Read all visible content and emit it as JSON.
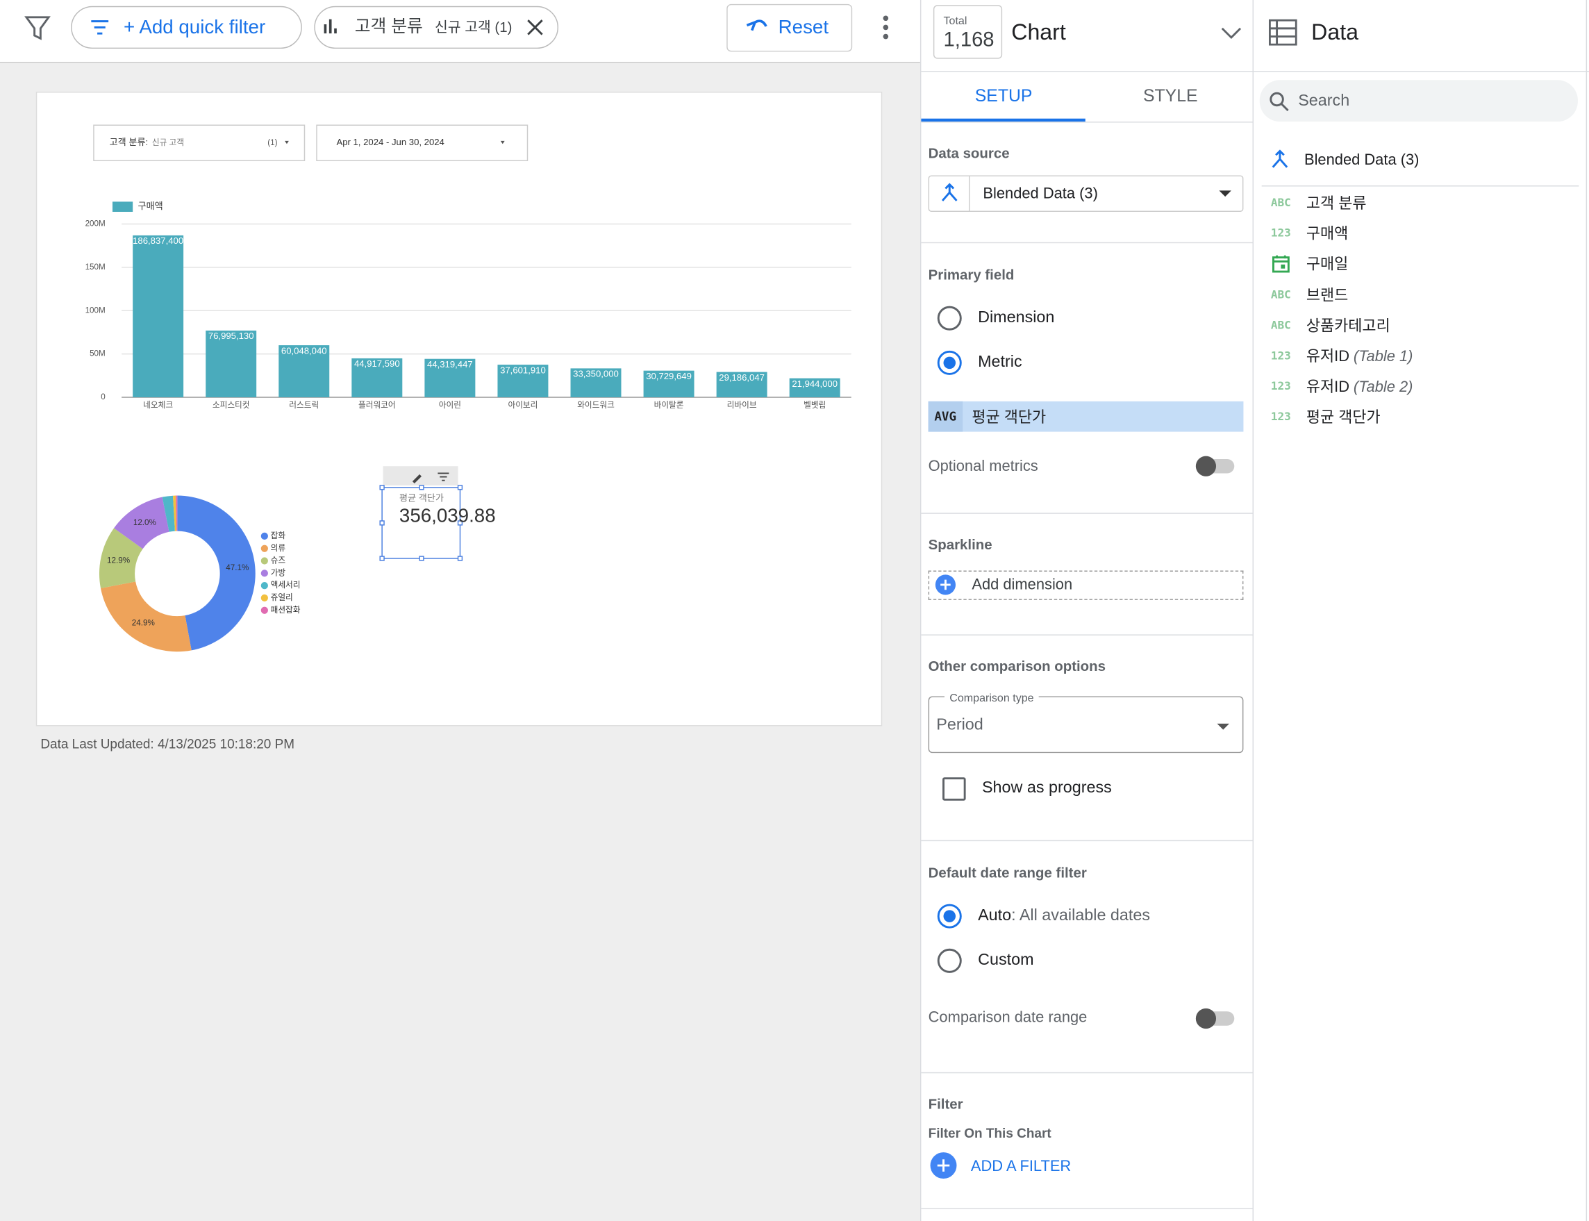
{
  "toolbar": {
    "add_filter": "+ Add quick filter",
    "filter_chip": {
      "field": "고객 분류",
      "value": "신규 고객 (1)"
    },
    "reset": "Reset"
  },
  "report": {
    "controls": [
      {
        "label": "고객 분류:",
        "value": "신규 고객",
        "count": "(1)"
      },
      {
        "label": "Apr 1, 2024 - Jun 30, 2024"
      }
    ],
    "bar_chart": {
      "type": "bar",
      "categories": [
        "네오체크",
        "소피스티컷",
        "러스트릭",
        "플러워코어",
        "아이린",
        "아이보리",
        "와이드워크",
        "바이탈론",
        "리바이브",
        "벨벳립"
      ],
      "series": [
        {
          "name": "구매액",
          "color": "#4aabbc",
          "values": [
            186837400,
            76995130,
            60048040,
            44917590,
            44319447,
            37601910,
            33350000,
            30729649,
            29186047,
            21944000
          ],
          "value_labels": [
            "186,837,400",
            "76,995,130",
            "60,048,040",
            "44,917,590",
            "44,319,447",
            "37,601,910",
            "33,350,000",
            "30,729,649",
            "29,186,047",
            "21,944,000"
          ]
        }
      ],
      "ylim": [
        0,
        200000000
      ],
      "yticks": [
        0,
        {
          "value": 50000000,
          "label": "50M"
        },
        {
          "value": 100000000,
          "label": "100M"
        },
        {
          "value": 150000000,
          "label": "150M"
        },
        {
          "value": 200000000,
          "label": "200M"
        }
      ],
      "grid": true
    },
    "pie_chart": {
      "type": "donut",
      "categories": [
        "잡화",
        "의류",
        "슈즈",
        "가방",
        "액세서리",
        "쥬얼리",
        "패션잡화"
      ],
      "values": [
        47.1,
        24.9,
        12.9,
        12.0,
        2.2,
        0.6,
        0.3
      ],
      "value_labels": [
        "47.1%",
        "24.9%",
        "12.9%",
        "12.0%",
        null,
        null,
        null
      ],
      "colors": [
        "#4f83ea",
        "#eea35a",
        "#b8c97a",
        "#a97ee0",
        "#4fb7c9",
        "#f2c03f",
        "#e06bb1"
      ]
    },
    "scorecard": {
      "label": "평균 객단가",
      "value": 356039.88,
      "value_label": "356,039.88"
    },
    "footer": "Data Last Updated: 4/13/2025 10:18:20 PM"
  },
  "setup_panel": {
    "total_label": "Total",
    "total": "1,168",
    "title": "Chart",
    "tabs": [
      "SETUP",
      "STYLE"
    ],
    "data_source_heading": "Data source",
    "data_source": "Blended Data (3)",
    "primary_field_heading": "Primary field",
    "options": [
      "Dimension",
      "Metric"
    ],
    "metric_agg": "AVG",
    "metric": "평균 객단가",
    "optional_metrics": "Optional metrics",
    "sparkline_heading": "Sparkline",
    "add_dimension": "Add dimension",
    "comparison_heading": "Other comparison options",
    "comparison_type_label": "Comparison type",
    "comparison_type": "Period",
    "show_progress": "Show as progress",
    "date_heading": "Default date range filter",
    "auto": "Auto",
    "auto_detail": ": All available dates",
    "custom": "Custom",
    "comparison_date_range": "Comparison date range",
    "filter_heading": "Filter",
    "filter_sub": "Filter On This Chart",
    "add_filter": "ADD A FILTER"
  },
  "data_panel": {
    "title": "Data",
    "search": "Search",
    "source": "Blended Data (3)",
    "fields": [
      {
        "type": "ABC",
        "name": "고객 분류"
      },
      {
        "type": "123",
        "name": "구매액"
      },
      {
        "name": "구매일"
      },
      {
        "type": "ABC",
        "name": "브랜드"
      },
      {
        "type": "ABC",
        "name": "상품카테고리"
      },
      {
        "type": "123",
        "name": "유저ID",
        "note": "(Table 1)"
      },
      {
        "type": "123",
        "name": "유저ID",
        "note": "(Table 2)"
      },
      {
        "type": "123",
        "name": "평균 객단가"
      }
    ]
  }
}
